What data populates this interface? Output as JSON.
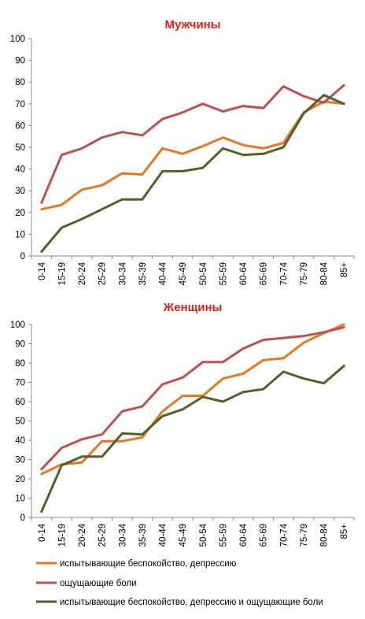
{
  "chart_data": [
    {
      "type": "line",
      "title": "Мужчины",
      "title_color": "#e02020",
      "categories": [
        "0-14",
        "15-19",
        "20-24",
        "25-29",
        "30-34",
        "35-39",
        "40-44",
        "45-49",
        "50-54",
        "55-59",
        "60-64",
        "65-69",
        "70-74",
        "75-79",
        "80-84",
        "85+"
      ],
      "ylim": [
        0,
        100
      ],
      "yticks": [
        0,
        10,
        20,
        30,
        40,
        50,
        60,
        70,
        80,
        90,
        100
      ],
      "grid": false,
      "series": [
        {
          "name": "испытывающие беспокойство, депрессию",
          "color": "#e8781e",
          "values": [
            21.5,
            23.5,
            30.5,
            32.5,
            38,
            37.5,
            49.5,
            47,
            50.5,
            54.5,
            51,
            49.5,
            52,
            66,
            71,
            70
          ]
        },
        {
          "name": "ощущающие боли",
          "color": "#c0504d",
          "values": [
            24.5,
            46.5,
            49.5,
            54.5,
            57,
            55.5,
            63,
            66,
            70,
            66.5,
            69,
            68,
            78,
            73.5,
            70.5,
            78.5
          ]
        },
        {
          "name": "испытывающие беспокойство, депрессию и ощущающие боли",
          "color": "#4f6228",
          "values": [
            2,
            13,
            17,
            21.5,
            26,
            26,
            39,
            39,
            40.5,
            49.5,
            46.5,
            47,
            50,
            65.5,
            74,
            70
          ]
        }
      ]
    },
    {
      "type": "line",
      "title": "Женщины",
      "title_color": "#e02020",
      "categories": [
        "0-14",
        "15-19",
        "20-24",
        "25-29",
        "30-34",
        "35-39",
        "40-44",
        "45-49",
        "50-54",
        "55-59",
        "60-64",
        "65-69",
        "70-74",
        "75-79",
        "80-84",
        "85+"
      ],
      "ylim": [
        0,
        100
      ],
      "yticks": [
        0,
        10,
        20,
        30,
        40,
        50,
        60,
        70,
        80,
        90,
        100
      ],
      "grid": false,
      "legend_position": "bottom",
      "series": [
        {
          "name": "испытывающие беспокойство, депрессию",
          "color": "#e8781e",
          "values": [
            22.5,
            27.5,
            28.5,
            39.5,
            39.5,
            41.5,
            55,
            63,
            63,
            72,
            74.5,
            81.5,
            82.5,
            90.5,
            95.5,
            100
          ]
        },
        {
          "name": "ощущающие боли",
          "color": "#c0504d",
          "values": [
            25,
            36,
            40.5,
            43,
            55,
            57.5,
            69,
            72.5,
            80.5,
            80.5,
            87.5,
            92,
            93,
            94,
            96,
            98.5
          ]
        },
        {
          "name": "испытывающие беспокойство, депрессию и ощущающие боли",
          "color": "#4f6228",
          "values": [
            3,
            27,
            31.5,
            31.5,
            43.5,
            43,
            52.5,
            56,
            62.5,
            60,
            65,
            66.5,
            75.5,
            72,
            69.5,
            78.5
          ]
        }
      ]
    }
  ],
  "legend": [
    {
      "label": "испытывающие беспокойство, депрессию",
      "color": "#e8781e"
    },
    {
      "label": "ощущающие боли",
      "color": "#c0504d"
    },
    {
      "label": "испытывающие беспокойство, депрессию и ощущающие боли",
      "color": "#4f6228"
    }
  ]
}
